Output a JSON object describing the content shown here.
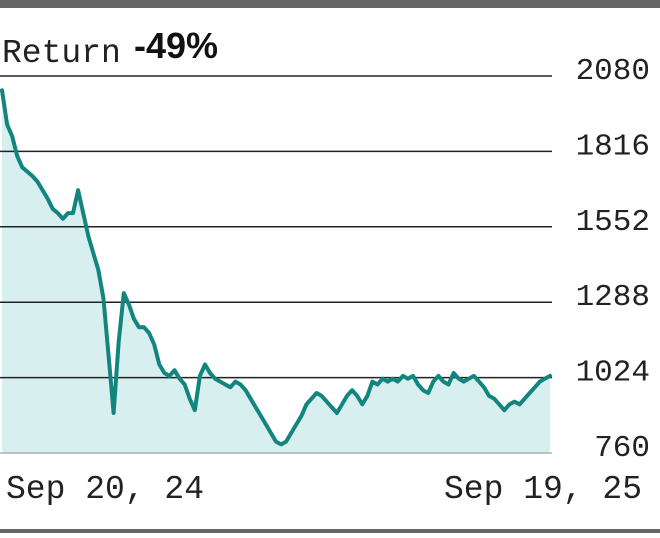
{
  "chart_data": {
    "type": "area",
    "title_label": "Return",
    "title_value": "-49%",
    "ylim": [
      760,
      2080
    ],
    "y_ticks": [
      "2080",
      "1816",
      "1552",
      "1288",
      "1024",
      "760"
    ],
    "x_tick_labels": [
      "Sep 20, 24",
      "Sep 19, 25"
    ],
    "grid": true,
    "colors": {
      "line": "#12857f",
      "fill": "#d8efef",
      "grid": "#222222",
      "frame": "#666666"
    },
    "series": [
      {
        "values": [
          2030,
          1910,
          1870,
          1800,
          1760,
          1745,
          1730,
          1710,
          1680,
          1650,
          1615,
          1600,
          1580,
          1600,
          1600,
          1680,
          1600,
          1520,
          1460,
          1400,
          1300,
          1100,
          900,
          1150,
          1320,
          1280,
          1230,
          1200,
          1200,
          1180,
          1140,
          1070,
          1040,
          1030,
          1050,
          1020,
          1000,
          950,
          910,
          1030,
          1070,
          1040,
          1020,
          1010,
          1000,
          990,
          1010,
          1000,
          980,
          950,
          920,
          890,
          860,
          830,
          800,
          790,
          800,
          830,
          860,
          890,
          930,
          950,
          970,
          960,
          940,
          920,
          900,
          930,
          960,
          980,
          960,
          930,
          960,
          1010,
          1000,
          1020,
          1010,
          1020,
          1010,
          1030,
          1020,
          1030,
          1000,
          980,
          970,
          1010,
          1030,
          1010,
          1000,
          1040,
          1020,
          1010,
          1020,
          1030,
          1010,
          990,
          960,
          950,
          930,
          910,
          930,
          940,
          930,
          950,
          970,
          990,
          1010,
          1020,
          1030
        ]
      }
    ]
  }
}
